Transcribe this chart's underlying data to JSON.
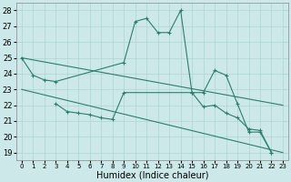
{
  "xlabel": "Humidex (Indice chaleur)",
  "color": "#2d7d6f",
  "bg_color": "#cce8e8",
  "grid_color": "#add4d4",
  "ylim": [
    18.5,
    28.5
  ],
  "xlim": [
    -0.5,
    23.5
  ],
  "yticks": [
    19,
    20,
    21,
    22,
    23,
    24,
    25,
    26,
    27,
    28
  ],
  "xticks": [
    0,
    1,
    2,
    3,
    4,
    5,
    6,
    7,
    8,
    9,
    10,
    11,
    12,
    13,
    14,
    15,
    16,
    17,
    18,
    19,
    20,
    21,
    22,
    23
  ],
  "main_x": [
    0,
    1,
    2,
    3,
    9,
    10,
    11,
    12,
    13,
    14,
    15,
    16,
    17,
    18,
    19,
    20,
    21,
    22
  ],
  "main_y": [
    25,
    23.9,
    23.6,
    23.5,
    24.7,
    27.3,
    27.5,
    26.6,
    26.6,
    28.0,
    22.8,
    22.8,
    24.2,
    23.9,
    22.1,
    20.3,
    20.3,
    19.0
  ],
  "lower_x": [
    3,
    4,
    5,
    6,
    7,
    8,
    9,
    15,
    16,
    17,
    18,
    19,
    20,
    21,
    22
  ],
  "lower_y": [
    22.1,
    21.6,
    21.5,
    21.4,
    21.2,
    21.1,
    22.8,
    22.8,
    21.9,
    22.0,
    21.5,
    21.2,
    20.5,
    20.4,
    19.0
  ],
  "trend1_x": [
    0,
    23
  ],
  "trend1_y": [
    25.0,
    22.0
  ],
  "trend2_x": [
    0,
    23
  ],
  "trend2_y": [
    23.0,
    19.0
  ]
}
